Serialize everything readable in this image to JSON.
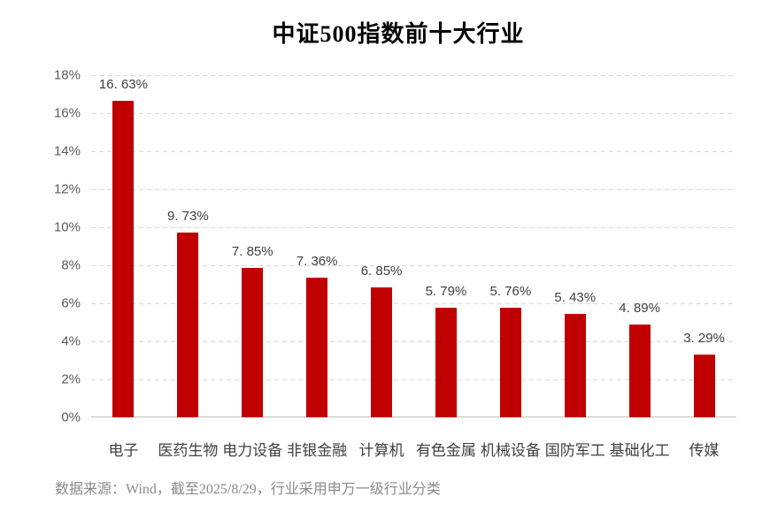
{
  "page": {
    "title": "中证500指数前十大行业",
    "source_note": "数据来源：Wind，截至2025/8/29，行业采用申万一级行业分类"
  },
  "colors": {
    "background": "#FFFFFF",
    "bar": "#C00000",
    "gridline": "#D9D9D9",
    "axis_line": "#BFBFBF",
    "ytick_label": "#595959",
    "value_label": "#404040",
    "category_label": "#404040",
    "source_note": "#8A8A8A",
    "title": "#000000"
  },
  "chart_data": {
    "type": "bar",
    "title": "中证500指数前十大行业",
    "categories": [
      "电子",
      "医药生物",
      "电力设备",
      "非银金融",
      "计算机",
      "有色金属",
      "机械设备",
      "国防军工",
      "基础化工",
      "传媒"
    ],
    "values": [
      16.63,
      9.73,
      7.85,
      7.36,
      6.85,
      5.79,
      5.76,
      5.43,
      4.89,
      3.29
    ],
    "value_labels": [
      "16. 63%",
      "9. 73%",
      "7. 85%",
      "7. 36%",
      "6. 85%",
      "5. 79%",
      "5. 76%",
      "5. 43%",
      "4. 89%",
      "3. 29%"
    ],
    "xlabel": "",
    "ylabel": "",
    "ylim": [
      0,
      18
    ],
    "ytick_step": 2,
    "ytick_labels": [
      "0%",
      "2%",
      "4%",
      "6%",
      "8%",
      "10%",
      "12%",
      "14%",
      "16%",
      "18%"
    ],
    "grid": "horizontal-dashed",
    "legend": "none",
    "bar_color": "#C00000",
    "source_note": "数据来源：Wind，截至2025/8/29，行业采用申万一级行业分类"
  }
}
